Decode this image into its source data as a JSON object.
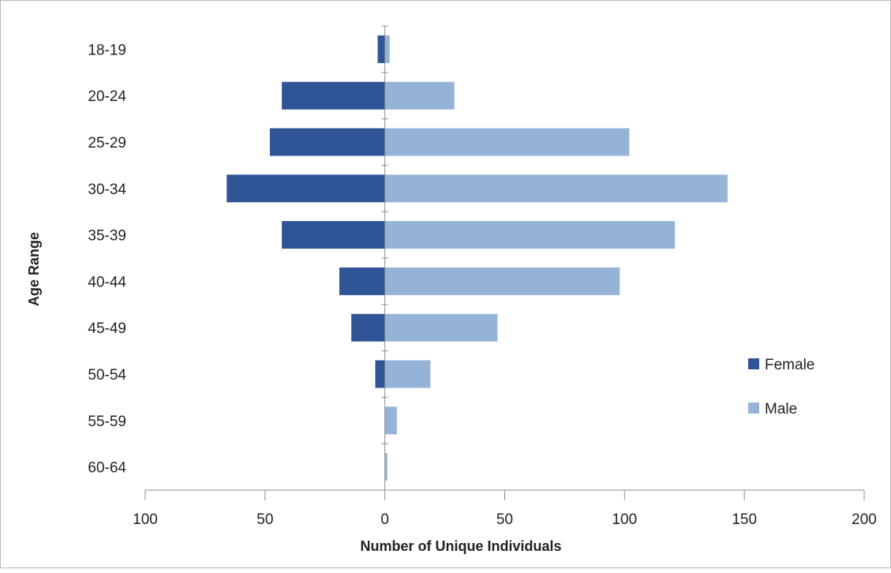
{
  "chart_data": {
    "type": "bar",
    "orientation": "horizontal",
    "title": "",
    "xlabel": "Number of Unique Individuals",
    "ylabel": "Age Range",
    "categories": [
      "18-19",
      "20-24",
      "25-29",
      "30-34",
      "35-39",
      "40-44",
      "45-49",
      "50-54",
      "55-59",
      "60-64"
    ],
    "series": [
      {
        "name": "Female",
        "color": "#2f5597",
        "values": [
          -3,
          -43,
          -48,
          -66,
          -43,
          -19,
          -14,
          -4,
          0,
          0
        ]
      },
      {
        "name": "Male",
        "color": "#95b3d7",
        "values": [
          2,
          29,
          102,
          143,
          121,
          98,
          47,
          19,
          5,
          1
        ]
      }
    ],
    "xlim": [
      -100,
      200
    ],
    "xticks": [
      -100,
      -50,
      0,
      50,
      100,
      150,
      200
    ],
    "xtick_labels": [
      "100",
      "50",
      "0",
      "50",
      "100",
      "150",
      "200"
    ],
    "grid": false,
    "legend_position": "right"
  }
}
